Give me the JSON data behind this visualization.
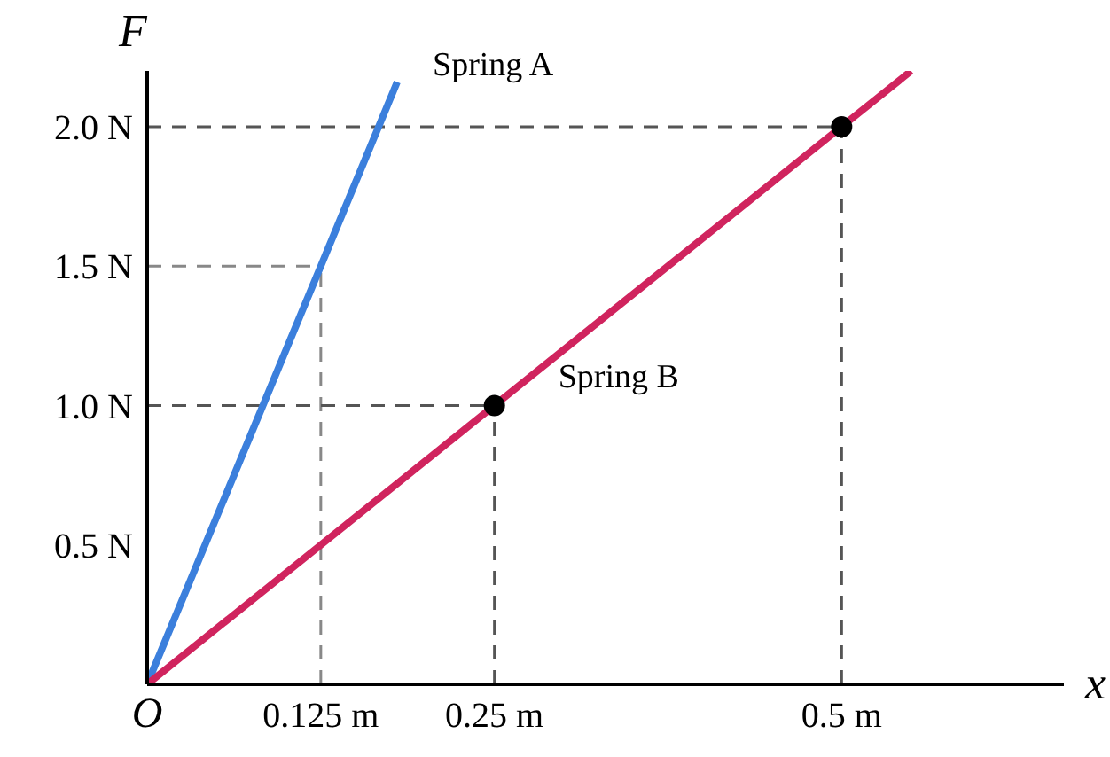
{
  "chart_data": {
    "type": "line",
    "xlabel": "x",
    "ylabel": "F",
    "legend": false,
    "line_style": "solid",
    "marker": "none",
    "grid": false,
    "xlim": [
      0,
      0.66
    ],
    "xticks": [
      {
        "value": 0,
        "label": "O"
      },
      {
        "value": 0.125,
        "label": "0.125 m"
      },
      {
        "value": 0.25,
        "label": "0.25 m"
      },
      {
        "value": 0.5,
        "label": "0.5 m"
      }
    ],
    "ylim": [
      0,
      2.2
    ],
    "yticks": [
      {
        "value": 0.5,
        "label": "0.5 N"
      },
      {
        "value": 1.0,
        "label": "1.0 N"
      },
      {
        "value": 1.5,
        "label": "1.5 N"
      },
      {
        "value": 2.0,
        "label": "2.0 N"
      }
    ],
    "series": [
      {
        "name": "Spring A",
        "color": "#3b7fdc",
        "x": [
          0,
          0.125,
          0.18
        ],
        "values": [
          0,
          1.5,
          2.16
        ]
      },
      {
        "name": "Spring B",
        "color": "#d0245e",
        "x": [
          0,
          0.25,
          0.5,
          0.55
        ],
        "values": [
          0,
          1.0,
          2.0,
          2.2
        ]
      },
      {
        "type": "scatter",
        "color": "#000000",
        "marker": "circle",
        "x": [
          0.25,
          0.5
        ],
        "values": [
          1.0,
          2.0
        ]
      }
    ],
    "ref_lines": [
      {
        "axis": "x",
        "value": 0.125,
        "color": "#888888",
        "line_style": "dashed"
      },
      {
        "axis": "x",
        "value": 0.25,
        "color": "#555555",
        "line_style": "dashed"
      },
      {
        "axis": "x",
        "value": 0.5,
        "color": "#555555",
        "line_style": "dashed"
      },
      {
        "axis": "y",
        "value": 1.5,
        "color": "#888888",
        "line_style": "dashed"
      },
      {
        "axis": "y",
        "value": 1.0,
        "color": "#555555",
        "line_style": "dashed"
      },
      {
        "axis": "y",
        "value": 2.0,
        "color": "#555555",
        "line_style": "dashed"
      }
    ]
  }
}
